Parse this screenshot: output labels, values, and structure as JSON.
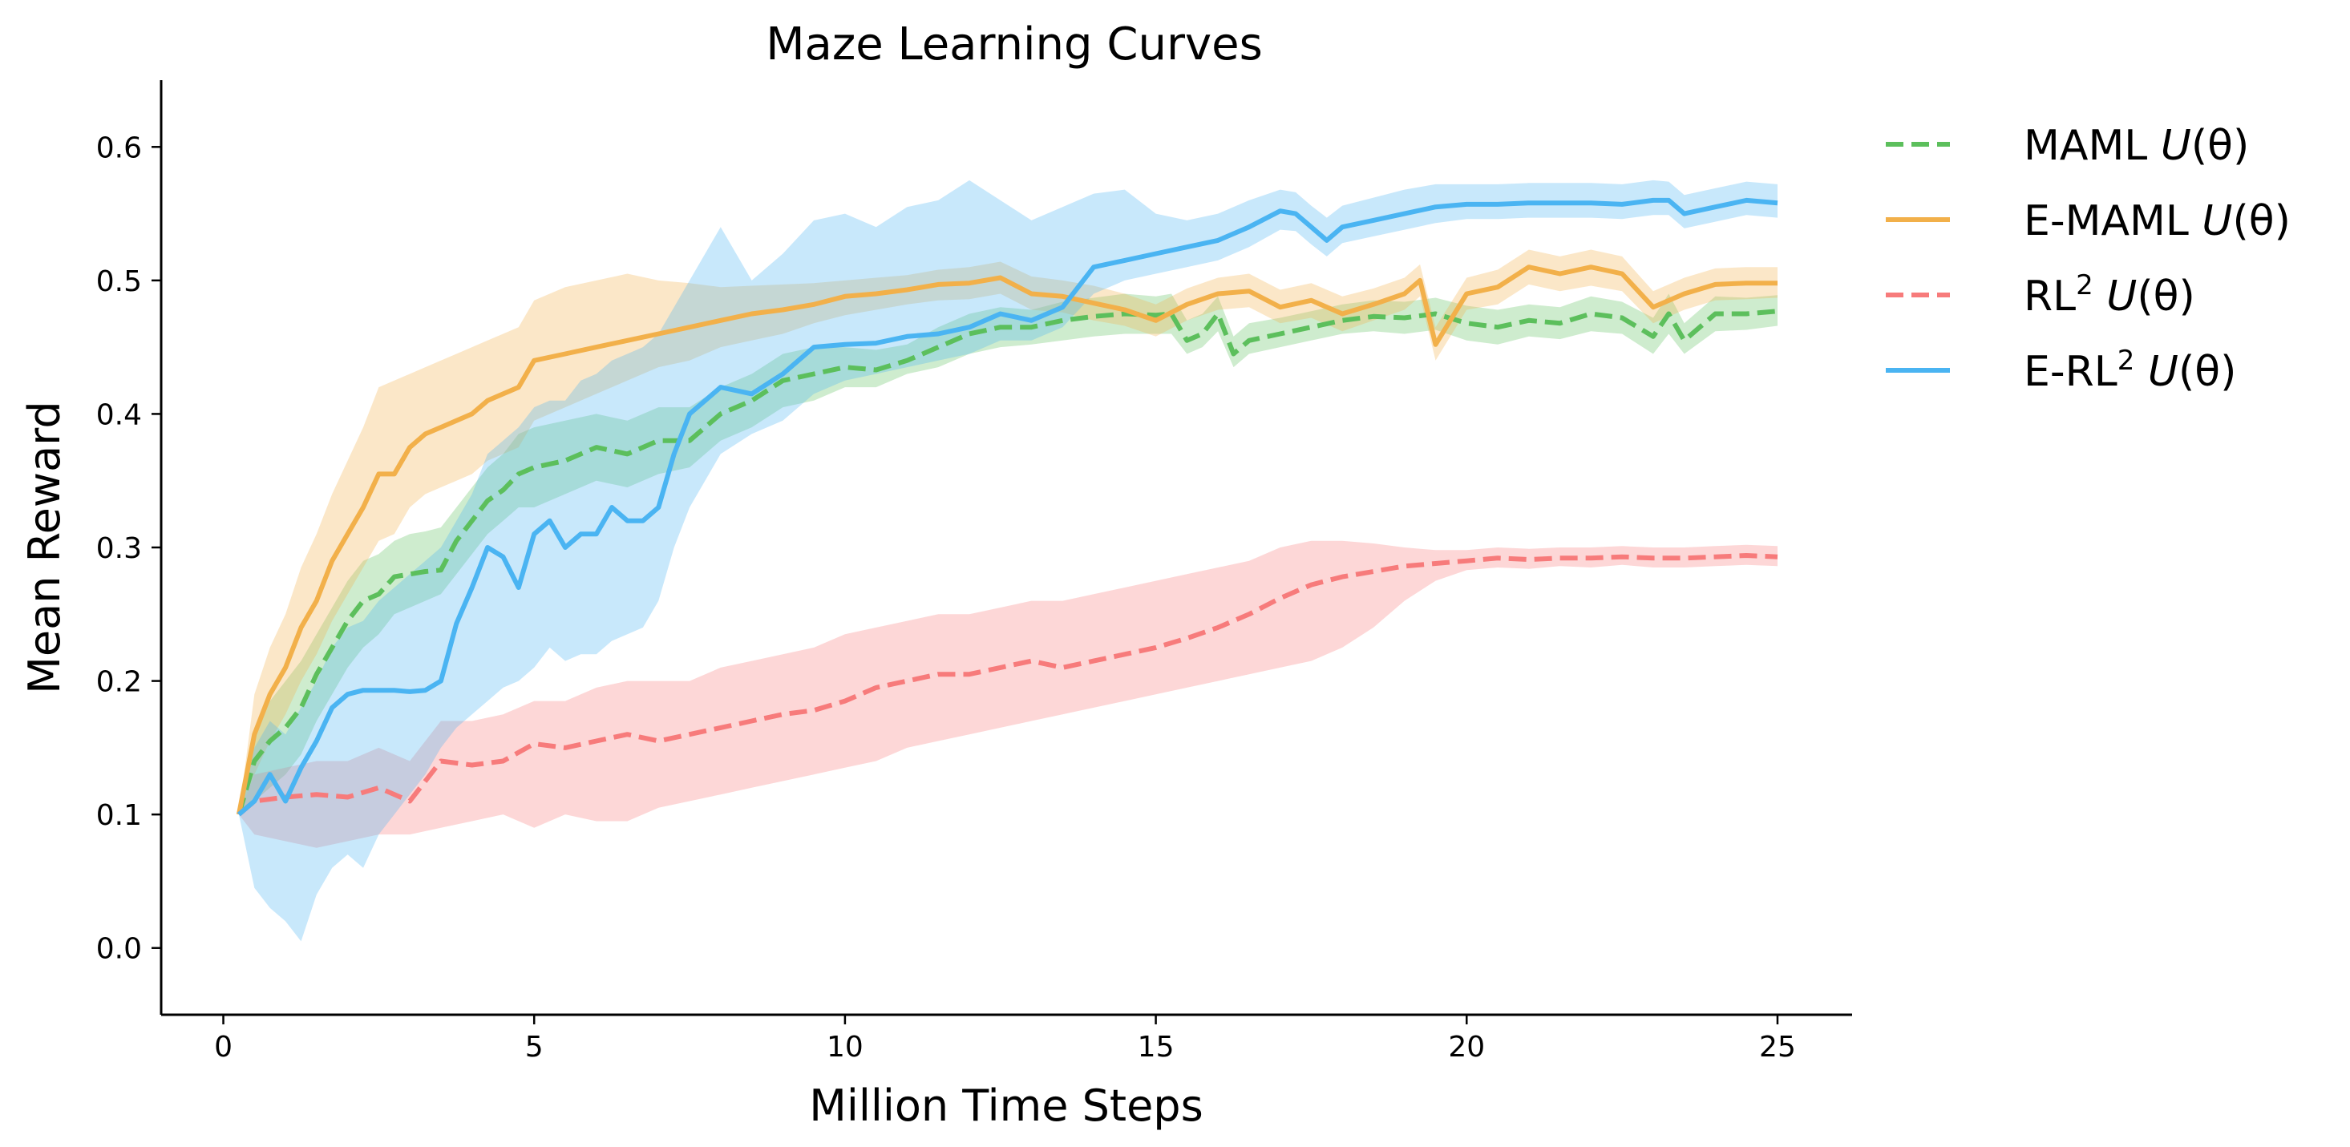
{
  "chart_data": {
    "type": "line",
    "title": "Maze Learning Curves",
    "xlabel": "Million Time Steps",
    "ylabel": "Mean Reward",
    "xlim": [
      -1,
      26.2
    ],
    "ylim": [
      -0.05,
      0.65
    ],
    "xticks": [
      0,
      5,
      10,
      15,
      20,
      25
    ],
    "yticks": [
      0.0,
      0.1,
      0.2,
      0.3,
      0.4,
      0.5,
      0.6
    ],
    "xtick_labels": [
      "0",
      "5",
      "10",
      "15",
      "20",
      "25"
    ],
    "ytick_labels": [
      "0.0",
      "0.1",
      "0.2",
      "0.3",
      "0.4",
      "0.5",
      "0.6"
    ],
    "grid": false,
    "legend_position": "outside-right-top",
    "series": [
      {
        "name": "MAML U(θ)",
        "legend": {
          "base": "MAML ",
          "sup": "",
          "fn": "U",
          "arg": "(θ)"
        },
        "color": "#5cbf5c",
        "dash": "dashed",
        "x": [
          0.25,
          0.5,
          0.75,
          1.0,
          1.25,
          1.5,
          1.75,
          2.0,
          2.25,
          2.5,
          2.75,
          3.0,
          3.25,
          3.5,
          3.75,
          4.0,
          4.25,
          4.5,
          4.75,
          5.0,
          5.5,
          6.0,
          6.5,
          7.0,
          7.5,
          8.0,
          8.5,
          9.0,
          9.5,
          10.0,
          10.5,
          11.0,
          11.5,
          12.0,
          12.5,
          13.0,
          13.5,
          14.0,
          14.5,
          15.0,
          15.25,
          15.5,
          15.75,
          16.0,
          16.25,
          16.5,
          17.0,
          17.5,
          18.0,
          18.5,
          19.0,
          19.5,
          20.0,
          20.5,
          21.0,
          21.5,
          22.0,
          22.5,
          23.0,
          23.25,
          23.5,
          24.0,
          24.5,
          25.0
        ],
        "y": [
          0.1,
          0.14,
          0.155,
          0.165,
          0.18,
          0.205,
          0.225,
          0.245,
          0.26,
          0.265,
          0.278,
          0.28,
          0.282,
          0.283,
          0.305,
          0.32,
          0.335,
          0.343,
          0.355,
          0.36,
          0.365,
          0.375,
          0.37,
          0.38,
          0.38,
          0.4,
          0.41,
          0.425,
          0.43,
          0.435,
          0.433,
          0.44,
          0.45,
          0.46,
          0.465,
          0.465,
          0.47,
          0.473,
          0.475,
          0.474,
          0.475,
          0.455,
          0.46,
          0.475,
          0.445,
          0.455,
          0.46,
          0.465,
          0.47,
          0.473,
          0.472,
          0.475,
          0.468,
          0.465,
          0.47,
          0.468,
          0.475,
          0.472,
          0.458,
          0.475,
          0.455,
          0.475,
          0.475,
          0.477
        ],
        "lower": [
          0.1,
          0.11,
          0.12,
          0.13,
          0.145,
          0.17,
          0.19,
          0.21,
          0.225,
          0.235,
          0.25,
          0.255,
          0.26,
          0.265,
          0.28,
          0.295,
          0.31,
          0.32,
          0.33,
          0.33,
          0.34,
          0.35,
          0.345,
          0.355,
          0.36,
          0.38,
          0.39,
          0.405,
          0.41,
          0.42,
          0.42,
          0.43,
          0.435,
          0.445,
          0.45,
          0.452,
          0.455,
          0.458,
          0.46,
          0.46,
          0.46,
          0.445,
          0.45,
          0.462,
          0.435,
          0.445,
          0.45,
          0.455,
          0.46,
          0.462,
          0.46,
          0.463,
          0.455,
          0.452,
          0.458,
          0.456,
          0.462,
          0.46,
          0.445,
          0.46,
          0.445,
          0.462,
          0.463,
          0.466
        ],
        "upper": [
          0.1,
          0.165,
          0.185,
          0.2,
          0.215,
          0.235,
          0.255,
          0.275,
          0.29,
          0.295,
          0.305,
          0.31,
          0.312,
          0.315,
          0.33,
          0.345,
          0.36,
          0.37,
          0.385,
          0.39,
          0.395,
          0.4,
          0.395,
          0.405,
          0.405,
          0.42,
          0.43,
          0.445,
          0.45,
          0.45,
          0.448,
          0.452,
          0.465,
          0.475,
          0.48,
          0.478,
          0.484,
          0.487,
          0.49,
          0.488,
          0.49,
          0.47,
          0.475,
          0.488,
          0.458,
          0.468,
          0.472,
          0.477,
          0.482,
          0.485,
          0.484,
          0.487,
          0.481,
          0.478,
          0.482,
          0.48,
          0.488,
          0.484,
          0.472,
          0.49,
          0.468,
          0.488,
          0.487,
          0.489
        ]
      },
      {
        "name": "E-MAML U(θ)",
        "legend": {
          "base": "E-MAML ",
          "sup": "",
          "fn": "U",
          "arg": "(θ)"
        },
        "color": "#f2b04a",
        "dash": "solid",
        "x": [
          0.25,
          0.5,
          0.75,
          1.0,
          1.25,
          1.5,
          1.75,
          2.0,
          2.25,
          2.5,
          2.75,
          3.0,
          3.25,
          3.5,
          3.75,
          4.0,
          4.25,
          4.5,
          4.75,
          5.0,
          5.5,
          6.0,
          6.5,
          7.0,
          7.5,
          8.0,
          8.5,
          9.0,
          9.5,
          10.0,
          10.5,
          11.0,
          11.5,
          12.0,
          12.5,
          13.0,
          13.5,
          14.0,
          14.5,
          15.0,
          15.5,
          16.0,
          16.5,
          17.0,
          17.5,
          18.0,
          18.5,
          19.0,
          19.25,
          19.5,
          20.0,
          20.5,
          21.0,
          21.5,
          22.0,
          22.5,
          23.0,
          23.5,
          24.0,
          24.5,
          25.0
        ],
        "y": [
          0.1,
          0.16,
          0.19,
          0.21,
          0.24,
          0.26,
          0.29,
          0.31,
          0.33,
          0.355,
          0.355,
          0.375,
          0.385,
          0.39,
          0.395,
          0.4,
          0.41,
          0.415,
          0.42,
          0.44,
          0.445,
          0.45,
          0.455,
          0.46,
          0.465,
          0.47,
          0.475,
          0.478,
          0.482,
          0.488,
          0.49,
          0.493,
          0.497,
          0.498,
          0.502,
          0.49,
          0.488,
          0.483,
          0.478,
          0.47,
          0.482,
          0.49,
          0.492,
          0.48,
          0.485,
          0.475,
          0.482,
          0.49,
          0.5,
          0.452,
          0.49,
          0.495,
          0.51,
          0.505,
          0.51,
          0.505,
          0.48,
          0.49,
          0.497,
          0.498,
          0.498
        ],
        "lower": [
          0.1,
          0.13,
          0.155,
          0.175,
          0.2,
          0.22,
          0.245,
          0.265,
          0.285,
          0.305,
          0.31,
          0.33,
          0.34,
          0.345,
          0.35,
          0.355,
          0.365,
          0.37,
          0.375,
          0.395,
          0.405,
          0.415,
          0.425,
          0.435,
          0.44,
          0.45,
          0.455,
          0.46,
          0.468,
          0.474,
          0.478,
          0.482,
          0.485,
          0.486,
          0.49,
          0.478,
          0.476,
          0.47,
          0.466,
          0.458,
          0.47,
          0.478,
          0.48,
          0.468,
          0.472,
          0.462,
          0.47,
          0.478,
          0.488,
          0.44,
          0.478,
          0.482,
          0.497,
          0.492,
          0.496,
          0.492,
          0.468,
          0.478,
          0.485,
          0.486,
          0.487
        ],
        "upper": [
          0.1,
          0.19,
          0.225,
          0.25,
          0.285,
          0.31,
          0.34,
          0.365,
          0.39,
          0.42,
          0.425,
          0.43,
          0.435,
          0.44,
          0.445,
          0.45,
          0.455,
          0.46,
          0.465,
          0.485,
          0.495,
          0.5,
          0.505,
          0.5,
          0.498,
          0.495,
          0.496,
          0.497,
          0.498,
          0.5,
          0.502,
          0.504,
          0.508,
          0.51,
          0.514,
          0.503,
          0.5,
          0.496,
          0.49,
          0.482,
          0.494,
          0.502,
          0.505,
          0.493,
          0.498,
          0.488,
          0.494,
          0.502,
          0.512,
          0.465,
          0.502,
          0.508,
          0.523,
          0.518,
          0.523,
          0.518,
          0.492,
          0.502,
          0.509,
          0.51,
          0.51
        ]
      },
      {
        "name": "RL2 U(θ)",
        "legend": {
          "base": "RL",
          "sup": "2",
          "fn": "U",
          "arg": "(θ)"
        },
        "color": "#f77b7b",
        "dash": "dashed",
        "x": [
          0.25,
          0.5,
          1.0,
          1.5,
          2.0,
          2.5,
          3.0,
          3.5,
          4.0,
          4.5,
          5.0,
          5.5,
          6.0,
          6.5,
          7.0,
          7.5,
          8.0,
          8.5,
          9.0,
          9.5,
          10.0,
          10.5,
          11.0,
          11.5,
          12.0,
          12.5,
          13.0,
          13.5,
          14.0,
          14.5,
          15.0,
          15.5,
          16.0,
          16.5,
          17.0,
          17.5,
          18.0,
          18.5,
          19.0,
          19.5,
          20.0,
          20.5,
          21.0,
          21.5,
          22.0,
          22.5,
          23.0,
          23.5,
          24.0,
          24.5,
          25.0
        ],
        "y": [
          0.1,
          0.11,
          0.113,
          0.115,
          0.113,
          0.12,
          0.11,
          0.14,
          0.137,
          0.14,
          0.153,
          0.15,
          0.155,
          0.16,
          0.155,
          0.16,
          0.165,
          0.17,
          0.175,
          0.178,
          0.185,
          0.195,
          0.2,
          0.205,
          0.205,
          0.21,
          0.215,
          0.21,
          0.215,
          0.22,
          0.225,
          0.232,
          0.24,
          0.25,
          0.262,
          0.272,
          0.278,
          0.282,
          0.286,
          0.288,
          0.29,
          0.292,
          0.291,
          0.292,
          0.292,
          0.293,
          0.292,
          0.292,
          0.293,
          0.294,
          0.293
        ],
        "lower": [
          0.1,
          0.085,
          0.08,
          0.075,
          0.08,
          0.085,
          0.085,
          0.09,
          0.095,
          0.1,
          0.09,
          0.1,
          0.095,
          0.095,
          0.105,
          0.11,
          0.115,
          0.12,
          0.125,
          0.13,
          0.135,
          0.14,
          0.15,
          0.155,
          0.16,
          0.165,
          0.17,
          0.175,
          0.18,
          0.185,
          0.19,
          0.195,
          0.2,
          0.205,
          0.21,
          0.215,
          0.225,
          0.24,
          0.26,
          0.275,
          0.283,
          0.285,
          0.284,
          0.286,
          0.285,
          0.287,
          0.285,
          0.285,
          0.286,
          0.287,
          0.286
        ],
        "upper": [
          0.1,
          0.13,
          0.135,
          0.14,
          0.14,
          0.15,
          0.14,
          0.17,
          0.17,
          0.175,
          0.185,
          0.185,
          0.195,
          0.2,
          0.2,
          0.2,
          0.21,
          0.215,
          0.22,
          0.225,
          0.235,
          0.24,
          0.245,
          0.25,
          0.25,
          0.255,
          0.26,
          0.26,
          0.265,
          0.27,
          0.275,
          0.28,
          0.285,
          0.29,
          0.3,
          0.305,
          0.305,
          0.303,
          0.3,
          0.298,
          0.298,
          0.3,
          0.299,
          0.3,
          0.3,
          0.301,
          0.3,
          0.3,
          0.301,
          0.302,
          0.301
        ]
      },
      {
        "name": "E-RL2 U(θ)",
        "legend": {
          "base": "E-RL",
          "sup": "2",
          "fn": "U",
          "arg": "(θ)"
        },
        "color": "#4ab4f2",
        "dash": "solid",
        "x": [
          0.25,
          0.5,
          0.75,
          1.0,
          1.25,
          1.5,
          1.75,
          2.0,
          2.25,
          2.5,
          2.75,
          3.0,
          3.25,
          3.5,
          3.75,
          4.0,
          4.25,
          4.5,
          4.75,
          5.0,
          5.25,
          5.5,
          5.75,
          6.0,
          6.25,
          6.5,
          6.75,
          7.0,
          7.25,
          7.5,
          8.0,
          8.5,
          9.0,
          9.5,
          10.0,
          10.5,
          11.0,
          11.5,
          12.0,
          12.5,
          13.0,
          13.5,
          14.0,
          14.5,
          15.0,
          15.5,
          16.0,
          16.5,
          17.0,
          17.25,
          17.5,
          17.75,
          18.0,
          18.5,
          19.0,
          19.5,
          20.0,
          20.5,
          21.0,
          21.5,
          22.0,
          22.5,
          23.0,
          23.25,
          23.5,
          24.0,
          24.5,
          25.0
        ],
        "y": [
          0.1,
          0.11,
          0.13,
          0.11,
          0.135,
          0.155,
          0.18,
          0.19,
          0.193,
          0.193,
          0.193,
          0.192,
          0.193,
          0.2,
          0.243,
          0.27,
          0.3,
          0.293,
          0.27,
          0.31,
          0.32,
          0.3,
          0.31,
          0.31,
          0.33,
          0.32,
          0.32,
          0.33,
          0.37,
          0.4,
          0.42,
          0.415,
          0.43,
          0.45,
          0.452,
          0.453,
          0.458,
          0.46,
          0.465,
          0.475,
          0.47,
          0.48,
          0.51,
          0.515,
          0.52,
          0.525,
          0.53,
          0.54,
          0.552,
          0.55,
          0.54,
          0.53,
          0.54,
          0.545,
          0.55,
          0.555,
          0.557,
          0.557,
          0.558,
          0.558,
          0.558,
          0.557,
          0.56,
          0.56,
          0.55,
          0.555,
          0.56,
          0.558
        ],
        "lower": [
          0.1,
          0.045,
          0.03,
          0.02,
          0.005,
          0.04,
          0.06,
          0.07,
          0.06,
          0.085,
          0.1,
          0.115,
          0.13,
          0.15,
          0.165,
          0.175,
          0.185,
          0.195,
          0.2,
          0.21,
          0.225,
          0.215,
          0.22,
          0.22,
          0.23,
          0.235,
          0.24,
          0.26,
          0.3,
          0.33,
          0.37,
          0.385,
          0.395,
          0.415,
          0.425,
          0.43,
          0.435,
          0.44,
          0.445,
          0.455,
          0.455,
          0.465,
          0.49,
          0.5,
          0.505,
          0.51,
          0.515,
          0.525,
          0.538,
          0.537,
          0.527,
          0.518,
          0.528,
          0.533,
          0.538,
          0.543,
          0.546,
          0.546,
          0.547,
          0.547,
          0.547,
          0.546,
          0.549,
          0.549,
          0.539,
          0.544,
          0.549,
          0.547
        ],
        "upper": [
          0.1,
          0.15,
          0.17,
          0.16,
          0.18,
          0.2,
          0.225,
          0.24,
          0.245,
          0.26,
          0.27,
          0.28,
          0.29,
          0.3,
          0.32,
          0.34,
          0.37,
          0.38,
          0.39,
          0.405,
          0.41,
          0.41,
          0.425,
          0.43,
          0.44,
          0.445,
          0.45,
          0.46,
          0.48,
          0.5,
          0.54,
          0.5,
          0.52,
          0.545,
          0.55,
          0.54,
          0.555,
          0.56,
          0.575,
          0.56,
          0.545,
          0.555,
          0.565,
          0.568,
          0.55,
          0.545,
          0.55,
          0.56,
          0.568,
          0.566,
          0.556,
          0.547,
          0.556,
          0.562,
          0.568,
          0.572,
          0.572,
          0.572,
          0.573,
          0.573,
          0.573,
          0.572,
          0.575,
          0.574,
          0.564,
          0.569,
          0.574,
          0.572
        ]
      }
    ]
  }
}
